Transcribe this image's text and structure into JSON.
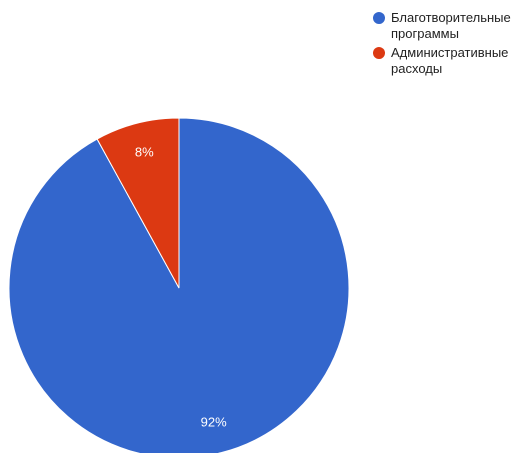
{
  "chart_data": {
    "type": "pie",
    "title": "",
    "slices": [
      {
        "name": "Благотворительные программы",
        "value": 92,
        "label": "92%",
        "color": "#3366cc"
      },
      {
        "name": "Административные расходы",
        "value": 8,
        "label": "8%",
        "color": "#dc3912"
      }
    ],
    "start_angle_deg": 0,
    "direction": "clockwise",
    "legend_position": "top-right"
  }
}
